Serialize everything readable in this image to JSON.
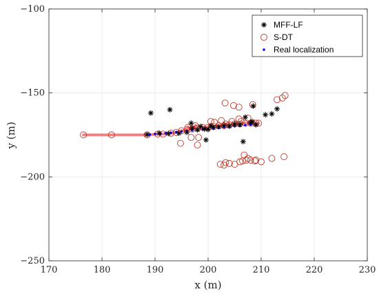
{
  "chart_data": {
    "type": "scatter",
    "xlabel": "x (m)",
    "ylabel": "y (m)",
    "xlim": [
      170,
      230
    ],
    "ylim": [
      -250,
      -100
    ],
    "xticks": [
      170,
      180,
      190,
      200,
      210,
      220,
      230
    ],
    "yticks": [
      -250,
      -200,
      -150,
      -100
    ],
    "grid": true,
    "legend_position": "top-right",
    "series": [
      {
        "name": "MFF-LF",
        "marker": "asterisk",
        "color": "#000000",
        "x": [
          188.5,
          189.2,
          192.8,
          190.8,
          192.5,
          194.5,
          196.0,
          197.0,
          198.0,
          198.6,
          199.3,
          200.0,
          200.5,
          201.0,
          202.0,
          203.0,
          204.0,
          205.0,
          206.0,
          207.0,
          208.0,
          208.5,
          209.0,
          210.8,
          212.0,
          213.0,
          199.6,
          206.6,
          208.3,
          196.8
        ],
        "y": [
          -174.8,
          -162.0,
          -160.0,
          -174.0,
          -174.2,
          -174.0,
          -173.5,
          -171.0,
          -172.0,
          -170.0,
          -171.5,
          -171.8,
          -169.5,
          -170.5,
          -170.2,
          -169.5,
          -169.8,
          -168.5,
          -168.8,
          -164.5,
          -167.8,
          -157.8,
          -169.0,
          -163.0,
          -162.5,
          -159.5,
          -178.0,
          -179.0,
          -167.0,
          -168.0
        ]
      },
      {
        "name": "S-DT",
        "marker": "circle",
        "color": "#c0392b",
        "x": [
          176.5,
          181.8,
          188.5,
          190.5,
          191.5,
          193.0,
          194.0,
          195.0,
          196.0,
          197.0,
          198.0,
          199.0,
          200.0,
          201.0,
          202.0,
          203.0,
          204.0,
          205.0,
          206.0,
          207.0,
          208.0,
          209.0,
          209.5,
          196.8,
          198.2,
          194.8,
          196.2,
          197.6,
          198.0,
          200.5,
          201.2,
          202.5,
          203.3,
          204.5,
          205.8,
          206.2,
          207.5,
          208.4,
          203.2,
          204.8,
          205.8,
          214.0,
          214.5,
          213.0,
          202.3,
          203.3,
          204.0,
          205.0,
          206.0,
          207.2,
          208.0,
          209.0,
          203.0,
          206.8,
          206.5,
          207.5,
          208.8,
          210.0,
          212.0,
          214.3
        ],
        "y": [
          -175.0,
          -175.0,
          -175.0,
          -174.5,
          -174.5,
          -174.0,
          -173.5,
          -172.5,
          -172.0,
          -171.5,
          -171.0,
          -170.5,
          -170.5,
          -170.0,
          -169.5,
          -169.5,
          -169.0,
          -168.5,
          -168.5,
          -168.0,
          -168.0,
          -168.0,
          -168.0,
          -176.5,
          -176.5,
          -180.0,
          -170.5,
          -169.5,
          -181.0,
          -167.0,
          -167.5,
          -166.5,
          -168.5,
          -167.0,
          -165.5,
          -167.0,
          -165.0,
          -157.0,
          -156.0,
          -157.5,
          -158.5,
          -153.0,
          -151.5,
          -154.0,
          -192.5,
          -191.5,
          -192.0,
          -192.5,
          -191.0,
          -190.0,
          -190.0,
          -190.0,
          -193.0,
          -187.0,
          -190.5,
          -189.0,
          -190.5,
          -191.0,
          -189.0,
          -188.0
        ]
      },
      {
        "name": "Real localization",
        "marker": "dot",
        "color": "#0000ff",
        "x": [
          189.0,
          190.0,
          191.0,
          192.0,
          193.0,
          194.0,
          195.0,
          196.0,
          197.0,
          198.0,
          199.0,
          200.0,
          201.0,
          202.0,
          203.0,
          204.0,
          205.0,
          206.0,
          207.0,
          208.0,
          209.0
        ],
        "y": [
          -174.8,
          -174.5,
          -174.3,
          -174.0,
          -173.7,
          -173.4,
          -173.0,
          -172.7,
          -172.3,
          -172.0,
          -171.7,
          -171.4,
          -171.0,
          -170.7,
          -170.4,
          -170.1,
          -169.8,
          -169.5,
          -169.2,
          -168.9,
          -168.7
        ]
      }
    ]
  }
}
